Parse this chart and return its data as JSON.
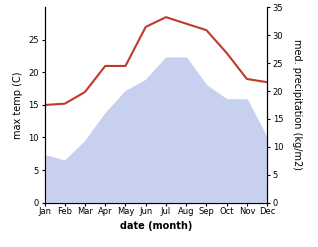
{
  "months": [
    "Jan",
    "Feb",
    "Mar",
    "Apr",
    "May",
    "Jun",
    "Jul",
    "Aug",
    "Sep",
    "Oct",
    "Nov",
    "Dec"
  ],
  "max_temp": [
    15.0,
    15.2,
    17.0,
    21.0,
    21.0,
    27.0,
    28.5,
    27.5,
    26.5,
    23.0,
    19.0,
    18.5
  ],
  "precipitation": [
    8.5,
    7.5,
    11.0,
    16.0,
    20.0,
    22.0,
    26.0,
    26.0,
    21.0,
    18.5,
    18.5,
    11.5
  ],
  "temp_color": "#c0392b",
  "precip_fill_color": "#c8d0f0",
  "temp_ylim": [
    0,
    30
  ],
  "precip_ylim": [
    0,
    35
  ],
  "temp_yticks": [
    0,
    5,
    10,
    15,
    20,
    25
  ],
  "precip_yticks": [
    0,
    5,
    10,
    15,
    20,
    25,
    30,
    35
  ],
  "ylabel_left": "max temp (C)",
  "ylabel_right": "med. precipitation (kg/m2)",
  "xlabel": "date (month)",
  "bg_color": "#ffffff",
  "tick_fontsize": 6,
  "label_fontsize": 7,
  "xlabel_fontsize": 7
}
